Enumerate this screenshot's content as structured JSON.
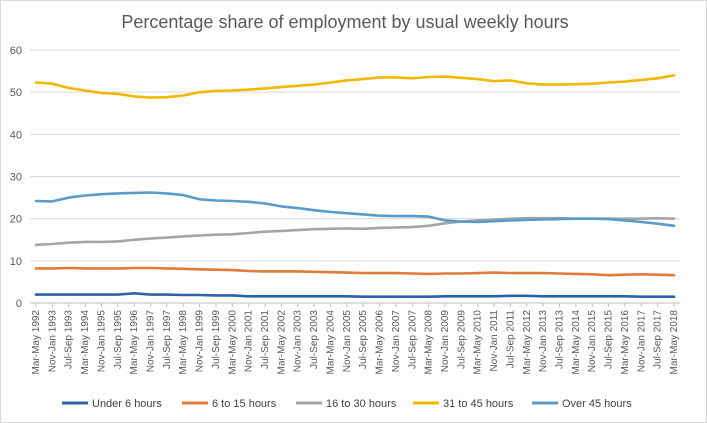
{
  "chart_data": {
    "type": "line",
    "title": "Percentage share of employment by usual weekly hours",
    "xlabel": "",
    "ylabel": "",
    "ylim": [
      0,
      60
    ],
    "yticks": [
      0,
      10,
      20,
      30,
      40,
      50,
      60
    ],
    "grid": true,
    "legend_position": "bottom",
    "categories": [
      "Mar-May 1992",
      "Nov-Jan 1993",
      "Jul-Sep 1993",
      "Mar-May 1994",
      "Nov-Jan 1995",
      "Jul-Sep 1995",
      "Mar-May 1996",
      "Nov-Jan 1997",
      "Jul-Sep 1997",
      "Mar-May 1998",
      "Nov-Jan 1999",
      "Jul-Sep 1999",
      "Mar-May 2000",
      "Nov-Jan 2001",
      "Jul-Sep 2001",
      "Mar-May 2002",
      "Nov-Jan 2003",
      "Jul-Sep 2003",
      "Mar-May 2004",
      "Nov-Jan 2005",
      "Jul-Sep 2005",
      "Mar-May 2006",
      "Nov-Jan 2007",
      "Jul-Sep 2007",
      "Mar-May 2008",
      "Nov-Jan 2009",
      "Jul-Sep 2009",
      "Mar-May 2010",
      "Nov-Jan 2011",
      "Jul-Sep 2011",
      "Mar-May 2012",
      "Nov-Jan 2013",
      "Jul-Sep 2013",
      "Mar-May 2014",
      "Nov-Jan 2015",
      "Jul-Sep 2015",
      "Mar-May 2016",
      "Nov-Jan 2017",
      "Jul-Sep 2017",
      "Mar-May 2018"
    ],
    "series": [
      {
        "name": "Under 6 hours",
        "color": "#2e62a8",
        "values": [
          2.0,
          2.0,
          2.0,
          2.0,
          2.0,
          2.0,
          2.3,
          2.0,
          2.0,
          1.9,
          1.9,
          1.8,
          1.8,
          1.6,
          1.6,
          1.6,
          1.6,
          1.6,
          1.6,
          1.6,
          1.5,
          1.5,
          1.5,
          1.5,
          1.5,
          1.6,
          1.6,
          1.6,
          1.6,
          1.7,
          1.7,
          1.6,
          1.6,
          1.6,
          1.6,
          1.6,
          1.6,
          1.5,
          1.5,
          1.5
        ]
      },
      {
        "name": "6 to 15 hours",
        "color": "#e07b39",
        "values": [
          8.2,
          8.2,
          8.3,
          8.2,
          8.2,
          8.2,
          8.3,
          8.3,
          8.2,
          8.1,
          8.0,
          7.9,
          7.8,
          7.6,
          7.5,
          7.5,
          7.5,
          7.4,
          7.3,
          7.2,
          7.1,
          7.1,
          7.1,
          7.0,
          6.9,
          7.0,
          7.0,
          7.1,
          7.2,
          7.1,
          7.1,
          7.1,
          7.0,
          6.9,
          6.8,
          6.6,
          6.7,
          6.8,
          6.7,
          6.6
        ]
      },
      {
        "name": "16 to 30 hours",
        "color": "#a5a5a5",
        "values": [
          13.8,
          14.0,
          14.3,
          14.5,
          14.5,
          14.6,
          15.0,
          15.3,
          15.5,
          15.8,
          16.0,
          16.2,
          16.3,
          16.6,
          16.9,
          17.1,
          17.3,
          17.5,
          17.6,
          17.7,
          17.6,
          17.8,
          17.9,
          18.0,
          18.3,
          18.9,
          19.3,
          19.6,
          19.8,
          20.0,
          20.1,
          20.1,
          20.1,
          20.0,
          20.0,
          20.0,
          20.0,
          20.0,
          20.1,
          20.0
        ]
      },
      {
        "name": "31 to 45 hours",
        "color": "#f2b800",
        "values": [
          52.3,
          52.0,
          51.0,
          50.4,
          49.8,
          49.6,
          49.0,
          48.7,
          48.8,
          49.2,
          50.0,
          50.3,
          50.4,
          50.6,
          50.9,
          51.2,
          51.5,
          51.8,
          52.3,
          52.8,
          53.1,
          53.5,
          53.5,
          53.3,
          53.6,
          53.7,
          53.4,
          53.1,
          52.6,
          52.8,
          52.1,
          51.8,
          51.8,
          51.9,
          52.0,
          52.3,
          52.5,
          52.9,
          53.3,
          54.0
        ]
      },
      {
        "name": "Over 45 hours",
        "color": "#5a9bc9",
        "values": [
          24.2,
          24.1,
          25.0,
          25.5,
          25.8,
          26.0,
          26.1,
          26.2,
          26.0,
          25.6,
          24.6,
          24.3,
          24.2,
          24.0,
          23.6,
          22.9,
          22.5,
          22.0,
          21.6,
          21.3,
          21.0,
          20.7,
          20.6,
          20.6,
          20.5,
          19.6,
          19.3,
          19.2,
          19.4,
          19.6,
          19.7,
          19.8,
          19.9,
          20.0,
          20.0,
          19.9,
          19.6,
          19.2,
          18.8,
          18.3
        ]
      }
    ]
  }
}
